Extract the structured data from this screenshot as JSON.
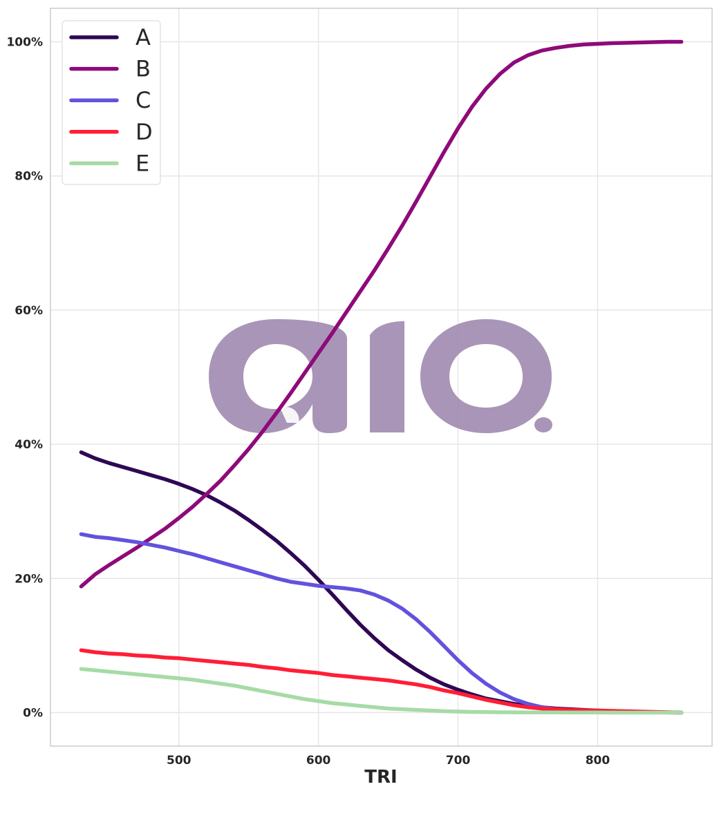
{
  "chart_data": {
    "type": "line",
    "title": "",
    "xlabel": "TRI",
    "ylabel": "",
    "xlim": [
      408,
      882
    ],
    "ylim": [
      -5,
      105
    ],
    "x_ticks": [
      500,
      600,
      700,
      800
    ],
    "x_tick_labels": [
      "500",
      "600",
      "700",
      "800"
    ],
    "y_ticks": [
      0,
      20,
      40,
      60,
      80,
      100
    ],
    "y_tick_labels": [
      "0%",
      "20%",
      "40%",
      "60%",
      "80%",
      "100%"
    ],
    "grid": true,
    "legend_position": "top-left",
    "watermark": "aio.",
    "x": [
      430,
      440,
      450,
      460,
      470,
      480,
      490,
      500,
      510,
      520,
      530,
      540,
      550,
      560,
      570,
      580,
      590,
      600,
      610,
      620,
      630,
      640,
      650,
      660,
      670,
      680,
      690,
      700,
      710,
      720,
      730,
      740,
      750,
      760,
      770,
      780,
      790,
      800,
      810,
      820,
      830,
      840,
      850,
      860
    ],
    "series": [
      {
        "name": "A",
        "color": "#2e0854",
        "values": [
          38.8,
          37.9,
          37.2,
          36.6,
          36.0,
          35.4,
          34.8,
          34.1,
          33.3,
          32.4,
          31.3,
          30.1,
          28.7,
          27.2,
          25.6,
          23.8,
          21.9,
          19.8,
          17.6,
          15.3,
          13.1,
          11.1,
          9.3,
          7.8,
          6.4,
          5.2,
          4.2,
          3.4,
          2.7,
          2.1,
          1.7,
          1.3,
          1.0,
          0.8,
          0.6,
          0.5,
          0.4,
          0.3,
          0.2,
          0.15,
          0.1,
          0.05,
          0.02,
          0.0
        ]
      },
      {
        "name": "B",
        "color": "#8e0a7a",
        "values": [
          18.8,
          20.6,
          22.0,
          23.3,
          24.6,
          26.0,
          27.4,
          29.0,
          30.7,
          32.6,
          34.6,
          36.9,
          39.3,
          41.9,
          44.7,
          47.6,
          50.6,
          53.6,
          56.6,
          59.7,
          62.8,
          65.9,
          69.2,
          72.6,
          76.2,
          79.9,
          83.6,
          87.1,
          90.3,
          93.0,
          95.2,
          96.9,
          98.0,
          98.7,
          99.1,
          99.4,
          99.6,
          99.7,
          99.8,
          99.85,
          99.9,
          99.95,
          100.0,
          100.0
        ]
      },
      {
        "name": "C",
        "color": "#6352de",
        "values": [
          26.6,
          26.2,
          26.0,
          25.7,
          25.4,
          25.0,
          24.6,
          24.1,
          23.6,
          23.0,
          22.4,
          21.8,
          21.2,
          20.6,
          20.0,
          19.5,
          19.2,
          18.9,
          18.7,
          18.5,
          18.2,
          17.6,
          16.7,
          15.5,
          13.9,
          12.0,
          9.9,
          7.8,
          5.9,
          4.3,
          3.0,
          2.0,
          1.3,
          0.8,
          0.5,
          0.35,
          0.25,
          0.2,
          0.15,
          0.1,
          0.08,
          0.05,
          0.02,
          0.0
        ]
      },
      {
        "name": "D",
        "color": "#ff1e35",
        "values": [
          9.3,
          9.0,
          8.8,
          8.7,
          8.5,
          8.4,
          8.2,
          8.1,
          7.9,
          7.7,
          7.5,
          7.3,
          7.1,
          6.8,
          6.6,
          6.3,
          6.1,
          5.9,
          5.6,
          5.4,
          5.2,
          5.0,
          4.8,
          4.5,
          4.2,
          3.8,
          3.3,
          2.9,
          2.4,
          1.9,
          1.5,
          1.1,
          0.8,
          0.6,
          0.5,
          0.4,
          0.35,
          0.3,
          0.25,
          0.2,
          0.15,
          0.1,
          0.05,
          0.0
        ]
      },
      {
        "name": "E",
        "color": "#a6dba6",
        "values": [
          6.5,
          6.3,
          6.1,
          5.9,
          5.7,
          5.5,
          5.3,
          5.1,
          4.9,
          4.6,
          4.3,
          4.0,
          3.6,
          3.2,
          2.8,
          2.4,
          2.0,
          1.7,
          1.4,
          1.2,
          1.0,
          0.8,
          0.6,
          0.5,
          0.4,
          0.3,
          0.2,
          0.15,
          0.1,
          0.08,
          0.05,
          0.04,
          0.03,
          0.02,
          0.02,
          0.01,
          0.01,
          0.01,
          0.0,
          0.0,
          0.0,
          0.0,
          0.0,
          0.0
        ]
      }
    ]
  }
}
